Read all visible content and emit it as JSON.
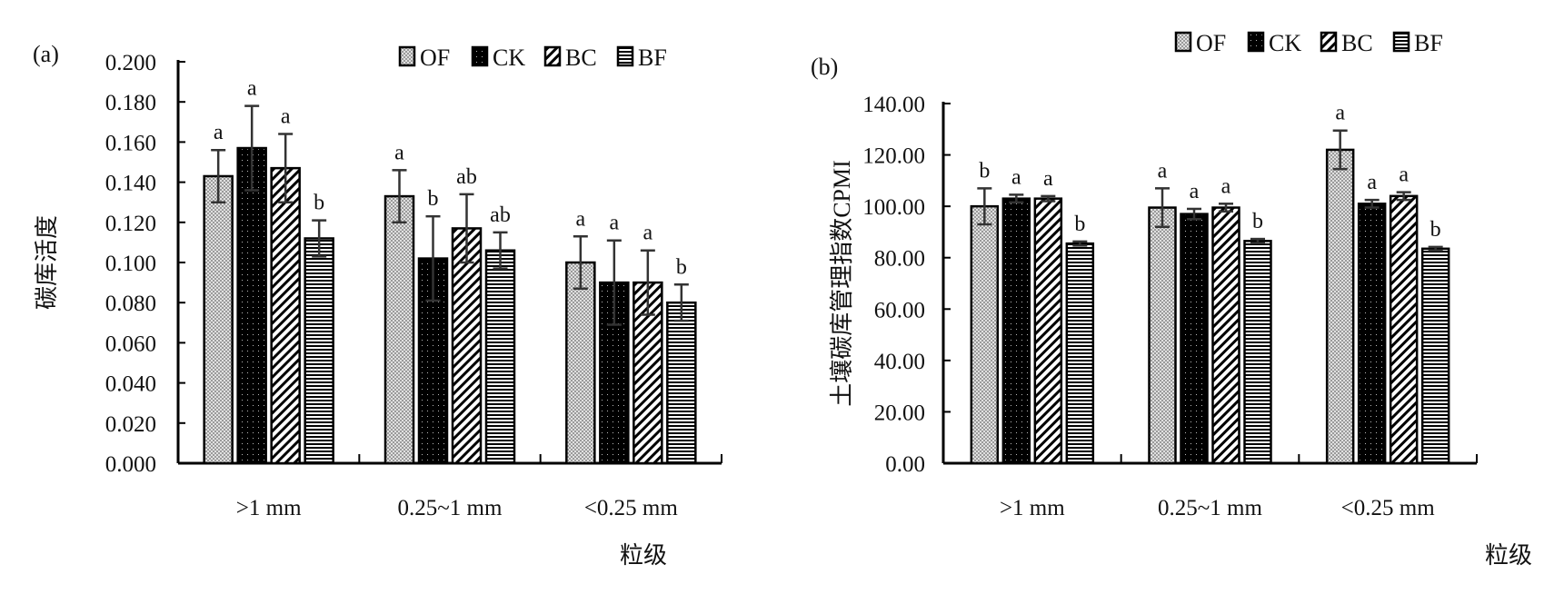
{
  "chart_data": [
    {
      "panel_label": "(a)",
      "type": "bar",
      "ylabel": "碳库活度",
      "xlabel": "粒级",
      "ylim": [
        0,
        0.2
      ],
      "yticks": [
        "0.000",
        "0.020",
        "0.040",
        "0.060",
        "0.080",
        "0.100",
        "0.120",
        "0.140",
        "0.160",
        "0.180",
        "0.200"
      ],
      "categories": [
        ">1 mm",
        "0.25~1 mm",
        "<0.25 mm"
      ],
      "legend": {
        "placement": "top-right",
        "entries": [
          "OF",
          "CK",
          "BC",
          "BF"
        ]
      },
      "series": [
        {
          "name": "OF",
          "values": [
            0.143,
            0.133,
            0.1
          ],
          "errors": [
            0.013,
            0.013,
            0.013
          ],
          "letters": [
            "a",
            "a",
            "a"
          ]
        },
        {
          "name": "CK",
          "values": [
            0.157,
            0.102,
            0.09
          ],
          "errors": [
            0.021,
            0.021,
            0.021
          ],
          "letters": [
            "a",
            "b",
            "a"
          ]
        },
        {
          "name": "BC",
          "values": [
            0.147,
            0.117,
            0.09
          ],
          "errors": [
            0.017,
            0.017,
            0.016
          ],
          "letters": [
            "a",
            "ab",
            "a"
          ]
        },
        {
          "name": "BF",
          "values": [
            0.112,
            0.106,
            0.08
          ],
          "errors": [
            0.009,
            0.009,
            0.009
          ],
          "letters": [
            "b",
            "ab",
            "b"
          ]
        }
      ]
    },
    {
      "panel_label": "(b)",
      "type": "bar",
      "ylabel": "土壤碳库管理指数CPMI",
      "xlabel": "粒级",
      "ylim": [
        0,
        140
      ],
      "yticks": [
        "0.00",
        "20.00",
        "40.00",
        "60.00",
        "80.00",
        "100.00",
        "120.00",
        "140.00"
      ],
      "categories": [
        ">1 mm",
        "0.25~1 mm",
        "<0.25 mm"
      ],
      "legend": {
        "placement": "top-right",
        "entries": [
          "OF",
          "CK",
          "BC",
          "BF"
        ]
      },
      "series": [
        {
          "name": "OF",
          "values": [
            100.0,
            99.5,
            122.0
          ],
          "errors": [
            7.0,
            7.5,
            7.5
          ],
          "letters": [
            "b",
            "a",
            "a"
          ]
        },
        {
          "name": "CK",
          "values": [
            103.0,
            97.0,
            101.0
          ],
          "errors": [
            1.5,
            2.0,
            1.5
          ],
          "letters": [
            "a",
            "a",
            "a"
          ]
        },
        {
          "name": "BC",
          "values": [
            103.0,
            99.5,
            104.0
          ],
          "errors": [
            1.0,
            1.5,
            1.5
          ],
          "letters": [
            "a",
            "a",
            "a"
          ]
        },
        {
          "name": "BF",
          "values": [
            85.5,
            86.5,
            83.5
          ],
          "errors": [
            0.8,
            0.8,
            0.7
          ],
          "letters": [
            "b",
            "b",
            "b"
          ]
        }
      ]
    }
  ]
}
